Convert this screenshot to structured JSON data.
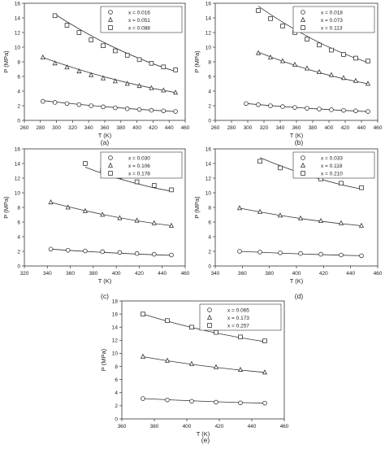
{
  "chart_data": [
    {
      "type": "scatter",
      "panel_label": "(a)",
      "xlabel": "T (K)",
      "ylabel": "P (MPa)",
      "xlim": [
        260,
        460
      ],
      "ylim": [
        0,
        16
      ],
      "xticks": [
        260,
        280,
        300,
        320,
        340,
        360,
        380,
        400,
        420,
        440,
        460
      ],
      "yticks": [
        0,
        2,
        4,
        6,
        8,
        10,
        12,
        14,
        16
      ],
      "legend_position": "top-right",
      "series": [
        {
          "name": "x = 0.016",
          "marker": "circle",
          "x": [
            283,
            298,
            313,
            328,
            343,
            358,
            373,
            388,
            403,
            418,
            433,
            448
          ],
          "y": [
            2.6,
            2.45,
            2.3,
            2.15,
            2.0,
            1.85,
            1.72,
            1.6,
            1.48,
            1.38,
            1.3,
            1.22
          ],
          "fit": [
            [
              283,
              2.7
            ],
            [
              448,
              1.2
            ]
          ]
        },
        {
          "name": "x = 0.051",
          "marker": "triangle",
          "x": [
            283,
            298,
            313,
            328,
            343,
            358,
            373,
            388,
            403,
            418,
            433,
            448
          ],
          "y": [
            8.6,
            7.8,
            7.25,
            6.7,
            6.2,
            5.75,
            5.35,
            5.0,
            4.7,
            4.4,
            4.1,
            3.8
          ],
          "fit": [
            [
              283,
              8.6
            ],
            [
              448,
              3.8
            ]
          ]
        },
        {
          "name": "x = 0.088",
          "marker": "square",
          "x": [
            298,
            313,
            328,
            343,
            358,
            373,
            388,
            403,
            418,
            433,
            448
          ],
          "y": [
            14.3,
            13.0,
            12.0,
            11.0,
            10.2,
            9.5,
            8.9,
            8.3,
            7.8,
            7.3,
            6.9
          ],
          "fit": [
            [
              298,
              14.5
            ],
            [
              448,
              6.7
            ]
          ]
        }
      ]
    },
    {
      "type": "scatter",
      "panel_label": "(b)",
      "xlabel": "T (K)",
      "ylabel": "P (MPa)",
      "xlim": [
        260,
        460
      ],
      "ylim": [
        0,
        16
      ],
      "xticks": [
        260,
        280,
        300,
        320,
        340,
        360,
        380,
        400,
        420,
        440,
        460
      ],
      "yticks": [
        0,
        2,
        4,
        6,
        8,
        10,
        12,
        14,
        16
      ],
      "legend_position": "top-right",
      "series": [
        {
          "name": "x = 0.018",
          "marker": "circle",
          "x": [
            298,
            313,
            328,
            343,
            358,
            373,
            388,
            403,
            418,
            433,
            448
          ],
          "y": [
            2.3,
            2.15,
            2.0,
            1.88,
            1.76,
            1.65,
            1.55,
            1.45,
            1.37,
            1.3,
            1.22
          ],
          "fit": [
            [
              298,
              2.3
            ],
            [
              448,
              1.2
            ]
          ]
        },
        {
          "name": "x = 0.073",
          "marker": "triangle",
          "x": [
            313,
            328,
            343,
            358,
            373,
            388,
            403,
            418,
            433,
            448
          ],
          "y": [
            9.2,
            8.6,
            8.1,
            7.6,
            7.1,
            6.6,
            6.2,
            5.8,
            5.4,
            5.0
          ],
          "fit": [
            [
              313,
              9.3
            ],
            [
              448,
              5.0
            ]
          ]
        },
        {
          "name": "x = 0.113",
          "marker": "square",
          "x": [
            313,
            328,
            343,
            358,
            373,
            388,
            403,
            418,
            433,
            448
          ],
          "y": [
            15.0,
            13.9,
            12.9,
            12.0,
            11.1,
            10.3,
            9.6,
            9.0,
            8.5,
            8.1
          ],
          "fit": [
            [
              313,
              15.6
            ],
            [
              448,
              7.9
            ]
          ]
        }
      ]
    },
    {
      "type": "scatter",
      "panel_label": "(c)",
      "xlabel": "T (K)",
      "ylabel": "P (MPa)",
      "xlim": [
        320,
        460
      ],
      "ylim": [
        0,
        16
      ],
      "xticks": [
        320,
        340,
        360,
        380,
        400,
        420,
        440,
        460
      ],
      "yticks": [
        0,
        2,
        4,
        6,
        8,
        10,
        12,
        14,
        16
      ],
      "legend_position": "top-right",
      "series": [
        {
          "name": "x = 0.030",
          "marker": "circle",
          "x": [
            343,
            358,
            373,
            388,
            403,
            418,
            433,
            448
          ],
          "y": [
            2.3,
            2.15,
            2.05,
            1.95,
            1.85,
            1.7,
            1.6,
            1.5
          ],
          "fit": [
            [
              343,
              2.3
            ],
            [
              448,
              1.45
            ]
          ]
        },
        {
          "name": "x = 0.106",
          "marker": "triangle",
          "x": [
            343,
            358,
            373,
            388,
            403,
            418,
            433,
            448
          ],
          "y": [
            8.7,
            8.0,
            7.5,
            7.0,
            6.55,
            6.2,
            5.85,
            5.5
          ],
          "fit": [
            [
              343,
              8.7
            ],
            [
              448,
              5.5
            ]
          ]
        },
        {
          "name": "x = 0.178",
          "marker": "square",
          "x": [
            373,
            388,
            403,
            418,
            433,
            448
          ],
          "y": [
            14.0,
            13.0,
            12.2,
            11.5,
            11.0,
            10.4
          ],
          "fit": [
            [
              373,
              13.5
            ],
            [
              448,
              10.2
            ]
          ]
        }
      ]
    },
    {
      "type": "scatter",
      "panel_label": "(d)",
      "xlabel": "T (K)",
      "ylabel": "P (MPa)",
      "xlim": [
        340,
        460
      ],
      "ylim": [
        0,
        16
      ],
      "xticks": [
        340,
        360,
        380,
        400,
        420,
        440,
        460
      ],
      "yticks": [
        0,
        2,
        4,
        6,
        8,
        10,
        12,
        14,
        16
      ],
      "legend_position": "top-right",
      "series": [
        {
          "name": "x = 0.033",
          "marker": "circle",
          "x": [
            358,
            373,
            388,
            403,
            418,
            433,
            448
          ],
          "y": [
            2.0,
            1.9,
            1.8,
            1.7,
            1.6,
            1.5,
            1.4
          ],
          "fit": [
            [
              358,
              2.0
            ],
            [
              448,
              1.4
            ]
          ]
        },
        {
          "name": "x = 0.118",
          "marker": "triangle",
          "x": [
            358,
            373,
            388,
            403,
            418,
            433,
            448
          ],
          "y": [
            7.9,
            7.4,
            6.9,
            6.5,
            6.15,
            5.85,
            5.5
          ],
          "fit": [
            [
              358,
              7.9
            ],
            [
              448,
              5.5
            ]
          ]
        },
        {
          "name": "x = 0.210",
          "marker": "square",
          "x": [
            373,
            388,
            403,
            418,
            433,
            448
          ],
          "y": [
            14.3,
            13.4,
            12.6,
            11.9,
            11.3,
            10.7
          ],
          "fit": [
            [
              373,
              14.8
            ],
            [
              448,
              10.5
            ]
          ]
        }
      ]
    },
    {
      "type": "scatter",
      "panel_label": "(e)",
      "xlabel": "T (K)",
      "ylabel": "P (MPa)",
      "xlim": [
        360,
        460
      ],
      "ylim": [
        0,
        18
      ],
      "xticks": [
        360,
        380,
        400,
        420,
        440,
        460
      ],
      "yticks": [
        0,
        2,
        4,
        6,
        8,
        10,
        12,
        14,
        16,
        18
      ],
      "legend_position": "top-right",
      "series": [
        {
          "name": "x = 0.065",
          "marker": "circle",
          "x": [
            373,
            388,
            403,
            418,
            433,
            448
          ],
          "y": [
            3.1,
            2.9,
            2.7,
            2.55,
            2.45,
            2.4
          ],
          "fit": [
            [
              373,
              3.1
            ],
            [
              448,
              2.4
            ]
          ]
        },
        {
          "name": "x = 0.173",
          "marker": "triangle",
          "x": [
            373,
            388,
            403,
            418,
            433,
            448
          ],
          "y": [
            9.5,
            8.9,
            8.4,
            7.9,
            7.5,
            7.1
          ],
          "fit": [
            [
              373,
              9.5
            ],
            [
              448,
              7.1
            ]
          ]
        },
        {
          "name": "x = 0.257",
          "marker": "square",
          "x": [
            373,
            388,
            403,
            418,
            433,
            448
          ],
          "y": [
            16.0,
            15.0,
            14.0,
            13.2,
            12.5,
            11.9
          ],
          "fit": [
            [
              373,
              16.0
            ],
            [
              448,
              11.8
            ]
          ]
        }
      ]
    }
  ]
}
